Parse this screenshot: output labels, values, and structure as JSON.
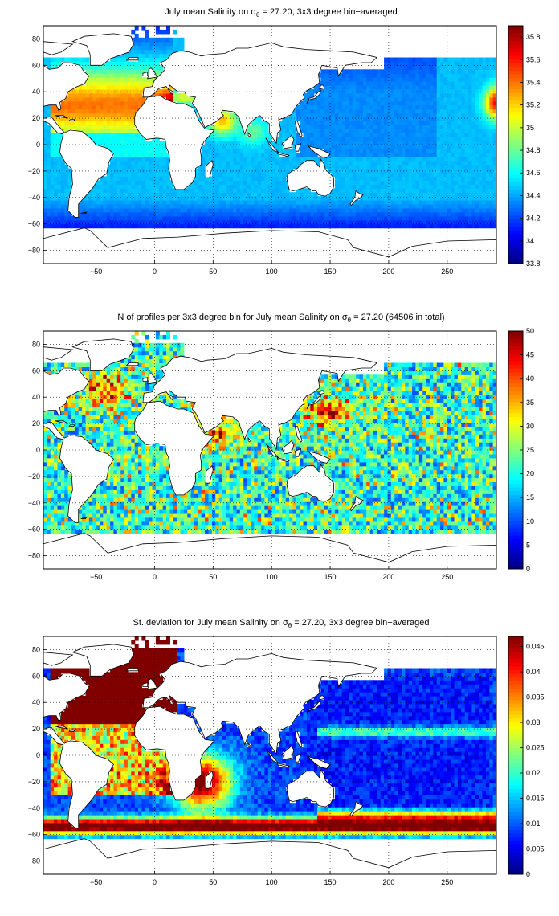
{
  "colormap": "jet",
  "colors": {
    "land": "#ffffff",
    "grid": "#000000",
    "axis": "#000000"
  },
  "chart_data": [
    {
      "type": "heatmap",
      "title_pre": "July mean Salinity on ",
      "title_sym": "σ",
      "title_sub": "θ",
      "title_post": " = 27.20, 3x3 degree bin−averaged",
      "xlim": [
        -95,
        292
      ],
      "ylim": [
        -90,
        90
      ],
      "xticks": [
        -50,
        0,
        50,
        100,
        150,
        200,
        250
      ],
      "yticks": [
        -80,
        -60,
        -40,
        -20,
        0,
        20,
        40,
        60,
        80
      ],
      "clim": [
        33.8,
        35.9
      ],
      "cticks": [
        33.8,
        34,
        34.2,
        34.4,
        34.6,
        34.8,
        35,
        35.2,
        35.4,
        35.6,
        35.8
      ],
      "grid": "dotted",
      "field": "salinity"
    },
    {
      "type": "heatmap",
      "title_pre": "N of profiles per 3x3 degree bin for July mean Salinity on ",
      "title_sym": "σ",
      "title_sub": "θ",
      "title_post": " = 27.20 (64506 in total)",
      "xlim": [
        -95,
        292
      ],
      "ylim": [
        -90,
        90
      ],
      "xticks": [
        -50,
        0,
        50,
        100,
        150,
        200,
        250
      ],
      "yticks": [
        -80,
        -60,
        -40,
        -20,
        0,
        20,
        40,
        60,
        80
      ],
      "clim": [
        0,
        50
      ],
      "cticks": [
        0,
        5,
        10,
        15,
        20,
        25,
        30,
        35,
        40,
        45,
        50
      ],
      "grid": "dotted",
      "field": "count"
    },
    {
      "type": "heatmap",
      "title_pre": "St. deviation for July mean Salinity on ",
      "title_sym": "σ",
      "title_sub": "θ",
      "title_post": " = 27.20, 3x3 degree bin−averaged",
      "xlim": [
        -95,
        292
      ],
      "ylim": [
        -90,
        90
      ],
      "xticks": [
        -50,
        0,
        50,
        100,
        150,
        200,
        250
      ],
      "yticks": [
        -80,
        -60,
        -40,
        -20,
        0,
        20,
        40,
        60,
        80
      ],
      "clim": [
        0,
        0.047
      ],
      "cticks": [
        0,
        0.005,
        0.01,
        0.015,
        0.02,
        0.025,
        0.03,
        0.035,
        0.04,
        0.045
      ],
      "grid": "dotted",
      "field": "stdev"
    }
  ]
}
